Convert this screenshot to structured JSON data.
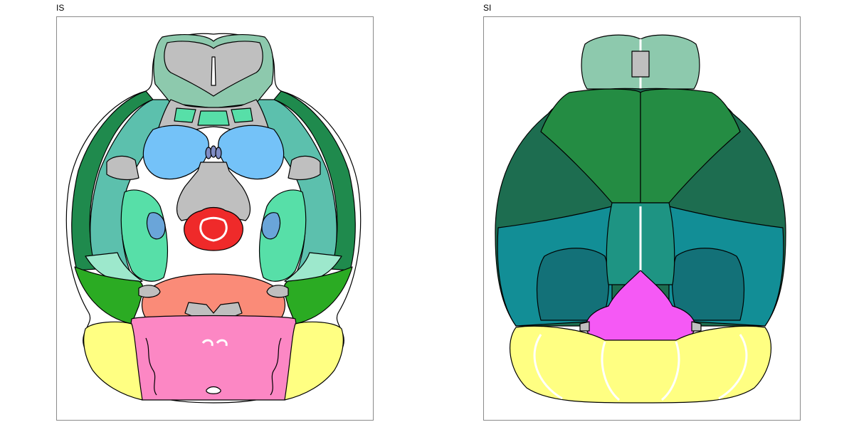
{
  "panels": [
    {
      "title": "IS"
    },
    {
      "title": "SI"
    }
  ],
  "colors": {
    "olfactory_green": "#8dc9ad",
    "grey": "#bfbfbf",
    "cortex_teal": "#5cc0ad",
    "cortex_dark": "#1f8a4d",
    "striatum_blue": "#74c2f8",
    "amygdala_green": "#57dfa8",
    "pale_mint": "#9de8cc",
    "hippo_green": "#2bab23",
    "salmon": "#fa8b78",
    "thalamus_red": "#ef2a2a",
    "pink": "#fc87c4",
    "cerebellum_yellow": "#ffff82",
    "slate": "#7f8cc4",
    "mid_blue": "#6aa5d9",
    "dorsal_green": "#248c43",
    "dorsal_dark": "#1d6d50",
    "dorsal_teal": "#128e96",
    "dorsal_teal_dark": "#137178",
    "dorsal_mid": "#1e9483",
    "magenta": "#f559f5"
  }
}
